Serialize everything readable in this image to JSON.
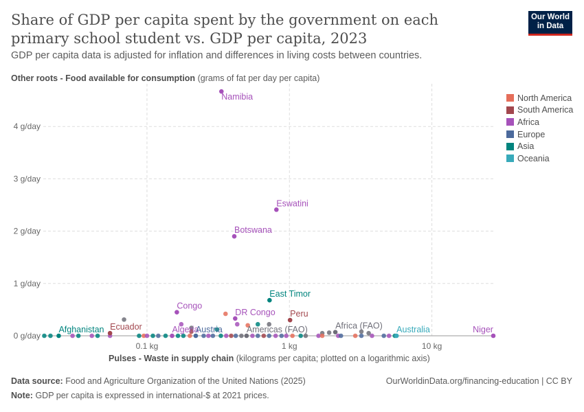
{
  "header": {
    "title": "Share of GDP per capita spent by the government on each primary school student vs. GDP per capita, 2023",
    "subtitle": "GDP per capita data is adjusted for inflation and differences in living costs between countries.",
    "logo": "Our World in Data"
  },
  "footer": {
    "source_label": "Data source:",
    "source": "Food and Agriculture Organization of the United Nations (2025)",
    "url": "OurWorldinData.org/financing-education | CC BY",
    "note_label": "Note:",
    "note": "GDP per capita is expressed in international-$ at 2021 prices."
  },
  "colors": {
    "North America": "#e56e5a",
    "South America": "#a2474e",
    "Africa": "#a652ba",
    "Europe": "#4c6a9c",
    "Asia": "#00847e",
    "Oceania": "#38aaba",
    "Aggregate": "#6e6e78"
  },
  "chart_data": {
    "type": "scatter",
    "ylabel_bold": "Other roots - Food available for consumption",
    "ylabel_unit": "(grams of fat per day per capita)",
    "xlabel_bold": "Pulses - Waste in supply chain",
    "xlabel_unit": "(kilograms per capita; plotted on a logarithmic axis)",
    "x_scale": "log",
    "xlim": [
      0.0187,
      27
    ],
    "ylim": [
      0,
      4.7
    ],
    "grid": true,
    "legend_position": "right",
    "x_ticks": [
      {
        "v": 0.1,
        "label": "0.1 kg"
      },
      {
        "v": 1,
        "label": "1 kg"
      },
      {
        "v": 10,
        "label": "10 kg"
      }
    ],
    "y_ticks": [
      {
        "v": 0,
        "label": "0 g/day"
      },
      {
        "v": 1,
        "label": "1 g/day"
      },
      {
        "v": 2,
        "label": "2 g/day"
      },
      {
        "v": 3,
        "label": "3 g/day"
      },
      {
        "v": 4,
        "label": "4 g/day"
      }
    ],
    "legend": [
      "North America",
      "South America",
      "Africa",
      "Europe",
      "Asia",
      "Oceania"
    ],
    "points": [
      {
        "label": "Namibia",
        "x": 0.333,
        "y": 4.67,
        "region": "Africa",
        "lx": 0,
        "ly": 12
      },
      {
        "label": "Eswatini",
        "x": 0.81,
        "y": 2.41,
        "region": "Africa",
        "lx": 0,
        "ly": -5
      },
      {
        "label": "Botswana",
        "x": 0.41,
        "y": 1.9,
        "region": "Africa",
        "lx": 0,
        "ly": -5
      },
      {
        "label": "East Timor",
        "x": 0.725,
        "y": 0.68,
        "region": "Asia",
        "lx": 0,
        "ly": -5
      },
      {
        "label": "Congo",
        "x": 0.162,
        "y": 0.45,
        "region": "Africa",
        "lx": 0,
        "ly": -5
      },
      {
        "label": "DR Congo",
        "x": 0.416,
        "y": 0.33,
        "region": "Africa",
        "lx": 0,
        "ly": -5
      },
      {
        "label": "Peru",
        "x": 1.01,
        "y": 0.3,
        "region": "South America",
        "lx": 0,
        "ly": -5
      },
      {
        "label": "Ecuador",
        "x": 0.055,
        "y": 0.05,
        "region": "South America",
        "lx": 0,
        "ly": -5
      },
      {
        "label": "Afghanistan",
        "x": 0.024,
        "y": 0,
        "region": "Asia",
        "lx": 0,
        "ly": -5
      },
      {
        "label": "Algeria",
        "x": 0.15,
        "y": 0,
        "region": "Africa",
        "lx": 0,
        "ly": -5
      },
      {
        "label": "Austria",
        "x": 0.22,
        "y": 0,
        "region": "Europe",
        "lx": 0,
        "ly": -5
      },
      {
        "label": "Americas (FAO)",
        "x": 0.5,
        "y": 0,
        "region": "Aggregate",
        "lx": 0,
        "ly": -5
      },
      {
        "label": "Africa (FAO)",
        "x": 2.1,
        "y": 0.07,
        "region": "Aggregate",
        "lx": 0,
        "ly": -5
      },
      {
        "label": "Australia",
        "x": 5.65,
        "y": 0,
        "region": "Oceania",
        "lx": 0,
        "ly": -5
      },
      {
        "label": "Niger",
        "x": 27,
        "y": 0,
        "region": "Africa",
        "lx": -15,
        "ly": -5
      },
      {
        "x": 0.356,
        "y": 0.42,
        "region": "North America"
      },
      {
        "x": 0.069,
        "y": 0.31,
        "region": "Aggregate"
      },
      {
        "x": 0.174,
        "y": 0.22,
        "region": "Africa"
      },
      {
        "x": 0.205,
        "y": 0.15,
        "region": "Aggregate"
      },
      {
        "x": 0.43,
        "y": 0.22,
        "region": "Africa"
      },
      {
        "x": 0.51,
        "y": 0.2,
        "region": "North America"
      },
      {
        "x": 0.6,
        "y": 0.22,
        "region": "Asia"
      },
      {
        "x": 0.72,
        "y": 0.22,
        "region": "Aggregate"
      },
      {
        "x": 0.31,
        "y": 0.12,
        "region": "Asia"
      },
      {
        "x": 0.205,
        "y": 0.08,
        "region": "South America"
      },
      {
        "x": 3.2,
        "y": 0.08,
        "region": "Aggregate"
      },
      {
        "x": 3.6,
        "y": 0.05,
        "region": "Aggregate"
      },
      {
        "x": 1.7,
        "y": 0.05,
        "region": "Aggregate"
      },
      {
        "x": 1.9,
        "y": 0.06,
        "region": "Aggregate"
      },
      {
        "x": 0.019,
        "y": 0,
        "region": "Asia"
      },
      {
        "x": 0.021,
        "y": 0,
        "region": "Asia"
      },
      {
        "x": 0.03,
        "y": 0,
        "region": "Africa"
      },
      {
        "x": 0.033,
        "y": 0,
        "region": "Asia"
      },
      {
        "x": 0.041,
        "y": 0,
        "region": "Africa"
      },
      {
        "x": 0.045,
        "y": 0,
        "region": "Asia"
      },
      {
        "x": 0.055,
        "y": 0,
        "region": "Africa"
      },
      {
        "x": 0.088,
        "y": 0,
        "region": "Asia"
      },
      {
        "x": 0.095,
        "y": 0,
        "region": "North America"
      },
      {
        "x": 0.1,
        "y": 0,
        "region": "Africa"
      },
      {
        "x": 0.11,
        "y": 0,
        "region": "Asia"
      },
      {
        "x": 0.12,
        "y": 0,
        "region": "Europe"
      },
      {
        "x": 0.135,
        "y": 0,
        "region": "Asia"
      },
      {
        "x": 0.165,
        "y": 0,
        "region": "Asia"
      },
      {
        "x": 0.18,
        "y": 0,
        "region": "Asia"
      },
      {
        "x": 0.2,
        "y": 0,
        "region": "North America"
      },
      {
        "x": 0.25,
        "y": 0,
        "region": "Europe"
      },
      {
        "x": 0.27,
        "y": 0,
        "region": "Africa"
      },
      {
        "x": 0.29,
        "y": 0,
        "region": "Europe"
      },
      {
        "x": 0.33,
        "y": 0,
        "region": "Asia"
      },
      {
        "x": 0.36,
        "y": 0,
        "region": "Africa"
      },
      {
        "x": 0.39,
        "y": 0,
        "region": "South America"
      },
      {
        "x": 0.42,
        "y": 0,
        "region": "Europe"
      },
      {
        "x": 0.46,
        "y": 0,
        "region": "Aggregate"
      },
      {
        "x": 0.55,
        "y": 0,
        "region": "Africa"
      },
      {
        "x": 0.6,
        "y": 0,
        "region": "Europe"
      },
      {
        "x": 0.66,
        "y": 0,
        "region": "South America"
      },
      {
        "x": 0.72,
        "y": 0,
        "region": "Europe"
      },
      {
        "x": 0.8,
        "y": 0,
        "region": "Africa"
      },
      {
        "x": 0.88,
        "y": 0,
        "region": "Europe"
      },
      {
        "x": 0.95,
        "y": 0,
        "region": "Africa"
      },
      {
        "x": 1.05,
        "y": 0,
        "region": "North America"
      },
      {
        "x": 1.2,
        "y": 0,
        "region": "Asia"
      },
      {
        "x": 1.3,
        "y": 0,
        "region": "Aggregate"
      },
      {
        "x": 1.6,
        "y": 0,
        "region": "Africa"
      },
      {
        "x": 1.7,
        "y": 0,
        "region": "North America"
      },
      {
        "x": 2.2,
        "y": 0,
        "region": "Africa"
      },
      {
        "x": 2.3,
        "y": 0,
        "region": "Europe"
      },
      {
        "x": 2.9,
        "y": 0,
        "region": "North America"
      },
      {
        "x": 3.2,
        "y": 0,
        "region": "Europe"
      },
      {
        "x": 3.8,
        "y": 0,
        "region": "Africa"
      },
      {
        "x": 4.6,
        "y": 0,
        "region": "Europe"
      },
      {
        "x": 5.0,
        "y": 0,
        "region": "Africa"
      },
      {
        "x": 5.5,
        "y": 0,
        "region": "Asia"
      }
    ]
  }
}
